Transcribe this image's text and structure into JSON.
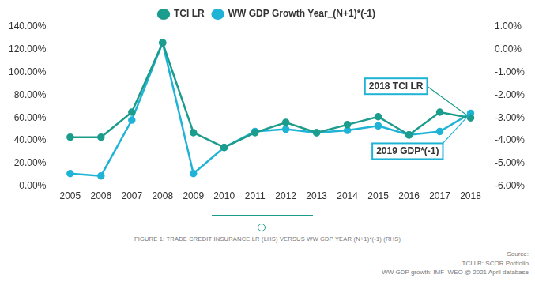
{
  "chart_data": {
    "type": "line",
    "categories": [
      "2005",
      "2006",
      "2007",
      "2008",
      "2009",
      "2010",
      "2011",
      "2012",
      "2013",
      "2014",
      "2015",
      "2016",
      "2017",
      "2018"
    ],
    "series": [
      {
        "name": "TCI LR",
        "color": "#1c9c8c",
        "marker": "circle",
        "values": [
          43,
          43,
          65,
          126,
          47,
          34,
          47,
          56,
          47,
          54,
          61,
          45,
          65,
          60
        ]
      },
      {
        "name": "WW GDP Growth Year_(N+1)*(-1)",
        "color": "#1fb3d6",
        "marker": "circle",
        "axis": "y2",
        "values": [
          -5.45,
          -5.55,
          -3.1,
          0.3,
          -5.45,
          -4.3,
          -3.6,
          -3.5,
          -3.65,
          -3.55,
          -3.35,
          -3.75,
          -3.6,
          -2.8
        ]
      }
    ],
    "ylim": [
      0,
      140
    ],
    "yticks": [
      {
        "value": 0,
        "label": "0.00%"
      },
      {
        "value": 20,
        "label": "20.00%"
      },
      {
        "value": 40,
        "label": "40.00%"
      },
      {
        "value": 60,
        "label": "60.00%"
      },
      {
        "value": 80,
        "label": "80.00%"
      },
      {
        "value": 100,
        "label": "100.00%"
      },
      {
        "value": 120,
        "label": "120.00%"
      },
      {
        "value": 140,
        "label": "140.00%"
      }
    ],
    "y2lim": [
      -6,
      1
    ],
    "y2ticks": [
      {
        "value": -6,
        "label": "-6.00%"
      },
      {
        "value": -5,
        "label": "-5.00%"
      },
      {
        "value": -4,
        "label": "-4.00%"
      },
      {
        "value": -3,
        "label": "-3.00%"
      },
      {
        "value": -2,
        "label": "-2.00%"
      },
      {
        "value": -1,
        "label": "-1.00%"
      },
      {
        "value": 0,
        "label": "0.00%"
      },
      {
        "value": 1,
        "label": "1.00%"
      }
    ],
    "grid": false,
    "legend": "top",
    "annotations": [
      {
        "text": "2018 TCI LR",
        "series": "TCI LR",
        "category": "2018"
      },
      {
        "text": "2019 GDP*(-1)",
        "series": "WW GDP Growth Year_(N+1)*(-1)",
        "category": "2018"
      }
    ],
    "caption": "FIGURE 1: TRADE CREDIT INSURANCE LR (LHS) VERSUS WW GDP YEAR (N+1)*(-1) (RHS)",
    "source": [
      "Source:",
      "TCI LR: SCOR Portfolio",
      "WW GDP growth: IMF–WEO @ 2021 April database"
    ]
  }
}
